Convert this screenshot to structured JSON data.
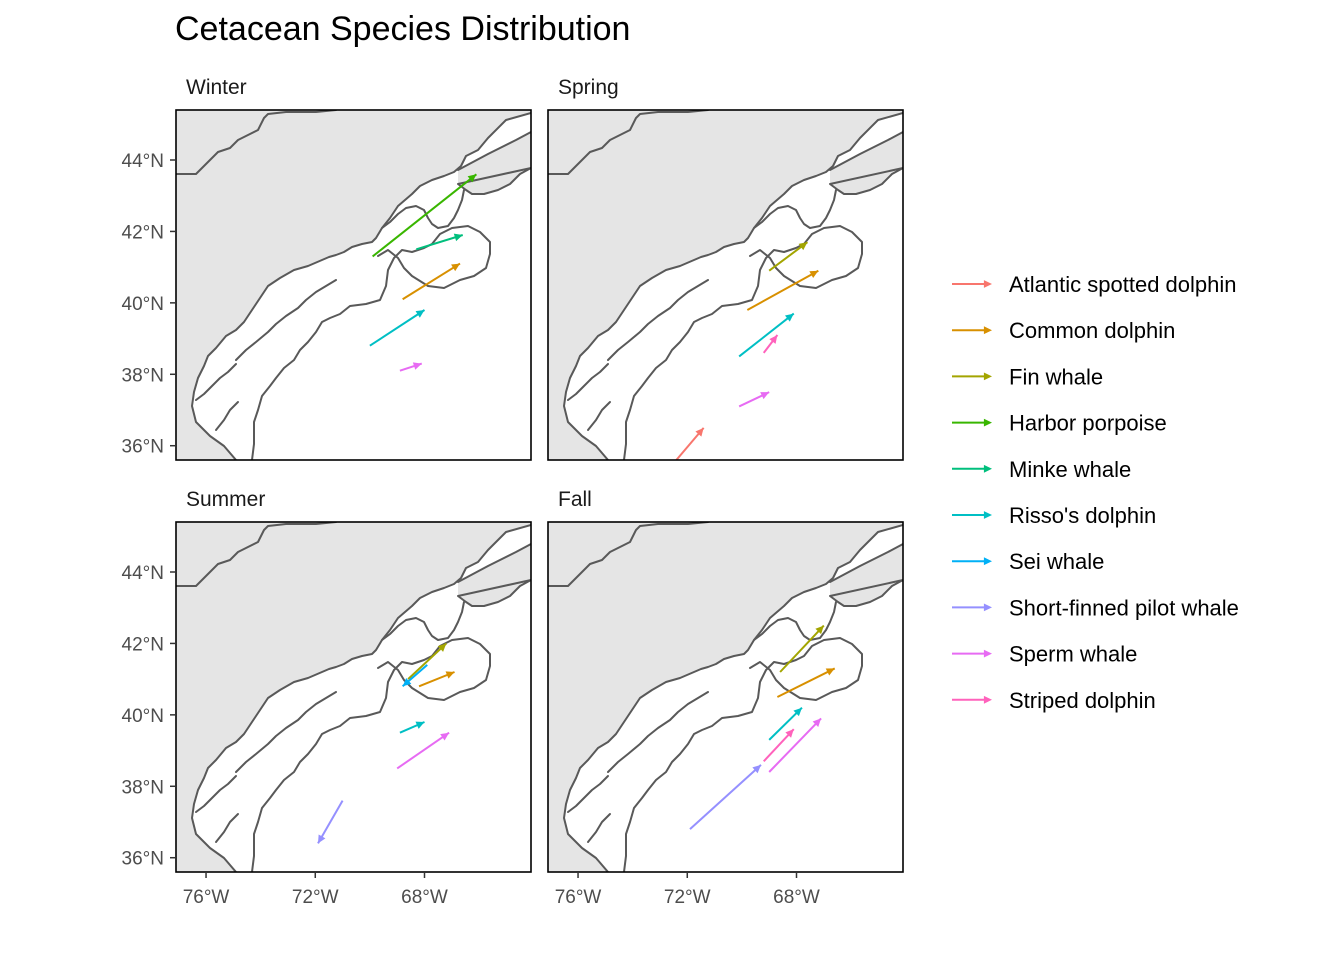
{
  "chart_data": {
    "type": "map-arrows",
    "title": "Cetacean Species Distribution",
    "x_axis": {
      "ticks": [
        -76,
        -72,
        -68
      ],
      "tick_labels": [
        "76°W",
        "72°W",
        "68°W"
      ],
      "range": [
        -77.1,
        -64.1
      ]
    },
    "y_axis": {
      "ticks": [
        36,
        38,
        40,
        42,
        44
      ],
      "tick_labels": [
        "36°N",
        "38°N",
        "40°N",
        "42°N",
        "44°N"
      ],
      "range": [
        35.6,
        45.4
      ]
    },
    "facets": [
      {
        "label": "Winter",
        "arrows": [
          {
            "species": "Harbor porpoise",
            "from": [
              -69.9,
              41.3
            ],
            "to": [
              -66.1,
              43.6
            ]
          },
          {
            "species": "Minke whale",
            "from": [
              -68.3,
              41.5
            ],
            "to": [
              -66.6,
              41.9
            ]
          },
          {
            "species": "Common dolphin",
            "from": [
              -68.8,
              40.1
            ],
            "to": [
              -66.7,
              41.1
            ]
          },
          {
            "species": "Risso's dolphin",
            "from": [
              -70.0,
              38.8
            ],
            "to": [
              -68.0,
              39.8
            ]
          },
          {
            "species": "Sperm whale",
            "from": [
              -68.9,
              38.1
            ],
            "to": [
              -68.1,
              38.3
            ]
          }
        ]
      },
      {
        "label": "Spring",
        "arrows": [
          {
            "species": "Fin whale",
            "from": [
              -69.0,
              40.9
            ],
            "to": [
              -67.6,
              41.7
            ]
          },
          {
            "species": "Common dolphin",
            "from": [
              -69.8,
              39.8
            ],
            "to": [
              -67.2,
              40.9
            ]
          },
          {
            "species": "Risso's dolphin",
            "from": [
              -70.1,
              38.5
            ],
            "to": [
              -68.1,
              39.7
            ]
          },
          {
            "species": "Striped dolphin",
            "from": [
              -69.2,
              38.6
            ],
            "to": [
              -68.7,
              39.1
            ]
          },
          {
            "species": "Sperm whale",
            "from": [
              -70.1,
              37.1
            ],
            "to": [
              -69.0,
              37.5
            ]
          },
          {
            "species": "Atlantic spotted dolphin",
            "from": [
              -72.4,
              35.6
            ],
            "to": [
              -71.4,
              36.5
            ]
          }
        ]
      },
      {
        "label": "Summer",
        "arrows": [
          {
            "species": "Fin whale",
            "from": [
              -68.6,
              41.0
            ],
            "to": [
              -67.2,
              42.0
            ]
          },
          {
            "species": "Sei whale",
            "from": [
              -67.9,
              41.4
            ],
            "to": [
              -68.8,
              40.8
            ]
          },
          {
            "species": "Common dolphin",
            "from": [
              -68.2,
              40.8
            ],
            "to": [
              -66.9,
              41.2
            ]
          },
          {
            "species": "Risso's dolphin",
            "from": [
              -68.9,
              39.5
            ],
            "to": [
              -68.0,
              39.8
            ]
          },
          {
            "species": "Sperm whale",
            "from": [
              -69.0,
              38.5
            ],
            "to": [
              -67.1,
              39.5
            ]
          },
          {
            "species": "Short-finned pilot whale",
            "from": [
              -71.0,
              37.6
            ],
            "to": [
              -71.9,
              36.4
            ]
          }
        ]
      },
      {
        "label": "Fall",
        "arrows": [
          {
            "species": "Fin whale",
            "from": [
              -68.6,
              41.2
            ],
            "to": [
              -67.0,
              42.5
            ]
          },
          {
            "species": "Common dolphin",
            "from": [
              -68.7,
              40.5
            ],
            "to": [
              -66.6,
              41.3
            ]
          },
          {
            "species": "Risso's dolphin",
            "from": [
              -69.0,
              39.3
            ],
            "to": [
              -67.8,
              40.2
            ]
          },
          {
            "species": "Sperm whale",
            "from": [
              -69.0,
              38.4
            ],
            "to": [
              -67.1,
              39.9
            ]
          },
          {
            "species": "Striped dolphin",
            "from": [
              -69.2,
              38.7
            ],
            "to": [
              -68.1,
              39.6
            ]
          },
          {
            "species": "Short-finned pilot whale",
            "from": [
              -71.9,
              36.8
            ],
            "to": [
              -69.3,
              38.6
            ]
          }
        ]
      }
    ],
    "legend": {
      "placement": "right",
      "entries": [
        {
          "label": "Atlantic spotted dolphin",
          "color": "#F8766D"
        },
        {
          "label": "Common dolphin",
          "color": "#D89000"
        },
        {
          "label": "Fin whale",
          "color": "#A3A500"
        },
        {
          "label": "Harbor porpoise",
          "color": "#39B600"
        },
        {
          "label": "Minke whale",
          "color": "#00BF7D"
        },
        {
          "label": "Risso's dolphin",
          "color": "#00BFC4"
        },
        {
          "label": "Sei whale",
          "color": "#00B0F6"
        },
        {
          "label": "Short-finned pilot whale",
          "color": "#9590FF"
        },
        {
          "label": "Sperm whale",
          "color": "#E76BF3"
        },
        {
          "label": "Striped dolphin",
          "color": "#FF62BC"
        }
      ]
    },
    "land_color": "#e5e5e5",
    "boundary_color": "#595959"
  }
}
